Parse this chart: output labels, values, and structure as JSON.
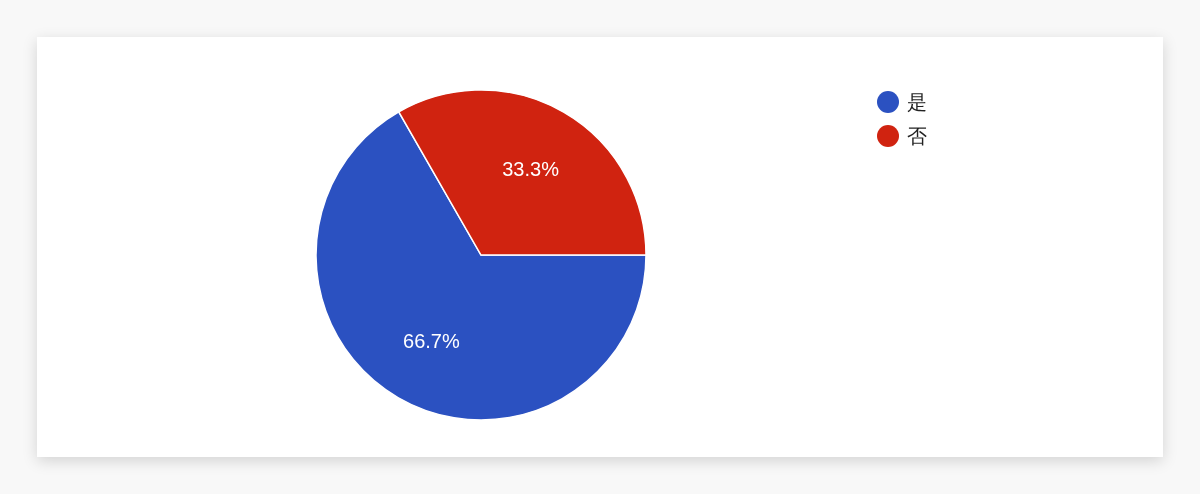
{
  "chart_data": {
    "type": "pie",
    "categories": [
      "是",
      "否"
    ],
    "values": [
      66.7,
      33.3
    ],
    "colors": [
      "#2b51c1",
      "#d02310"
    ],
    "value_labels": [
      "66.7%",
      "33.3%"
    ],
    "legend": "top right"
  }
}
